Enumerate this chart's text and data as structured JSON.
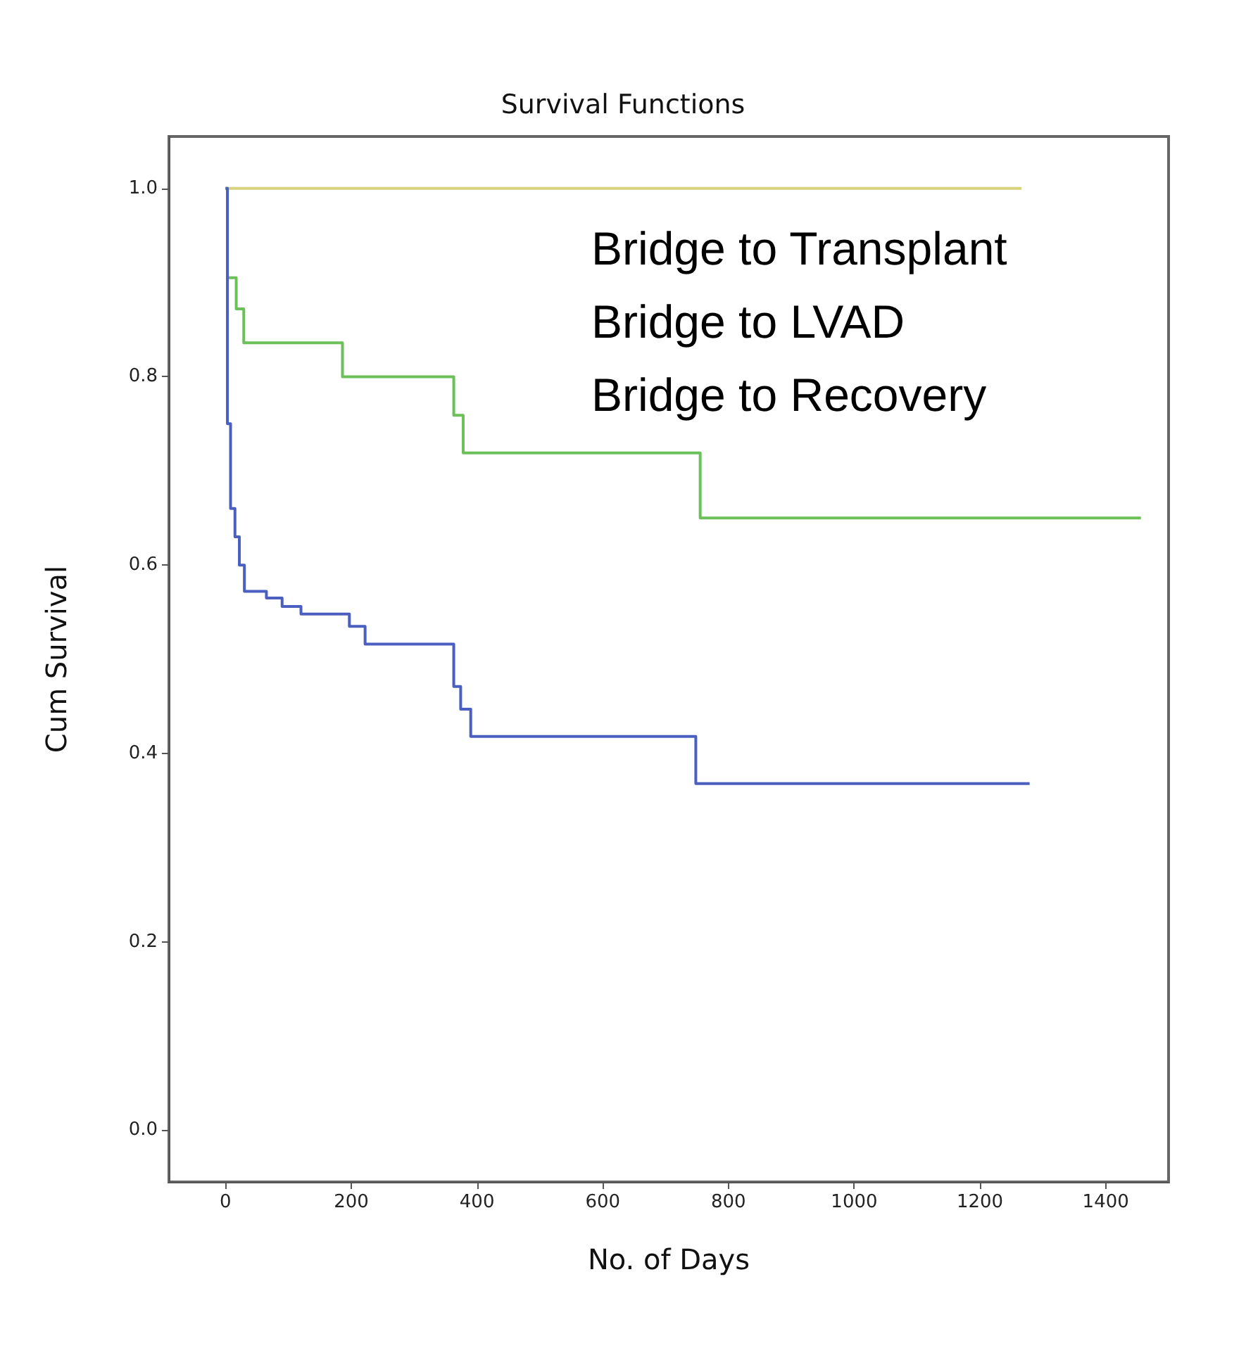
{
  "chart_data": {
    "type": "step",
    "title": "Survival Functions",
    "xlabel": "No. of Days",
    "ylabel": "Cum Survival",
    "annotations": [
      "Bridge to Transplant",
      "Bridge to LVAD",
      "Bridge to Recovery"
    ],
    "xlim": [
      -90,
      1500
    ],
    "xticks": [
      0,
      200,
      400,
      600,
      800,
      1000,
      1200,
      1400
    ],
    "ylim": [
      -0.055,
      1.055
    ],
    "yticks": [
      {
        "value": 0,
        "label": "0.0"
      },
      {
        "value": 0.2,
        "label": "0.2"
      },
      {
        "value": 0.4,
        "label": "0.4"
      },
      {
        "value": 0.6,
        "label": "0.6"
      },
      {
        "value": 0.8,
        "label": "0.8"
      },
      {
        "value": 1,
        "label": "1.0"
      }
    ],
    "marker": "none",
    "line_style": "solid",
    "series": [
      {
        "color": "#d8d27c",
        "x": [
          0,
          1266
        ],
        "values": [
          1.0,
          1.0
        ]
      },
      {
        "color": "#6cc05a",
        "x": [
          0,
          3,
          17,
          29,
          186,
          363,
          378,
          755,
          1456
        ],
        "values": [
          1.0,
          0.905,
          0.872,
          0.836,
          0.8,
          0.759,
          0.719,
          0.65,
          0.65
        ]
      },
      {
        "color": "#4a5fc0",
        "x": [
          0,
          3,
          8,
          15,
          22,
          30,
          65,
          90,
          120,
          197,
          222,
          363,
          374,
          390,
          748,
          1279
        ],
        "values": [
          1.0,
          0.75,
          0.66,
          0.63,
          0.6,
          0.572,
          0.565,
          0.556,
          0.548,
          0.535,
          0.516,
          0.471,
          0.447,
          0.418,
          0.368,
          0.368
        ]
      }
    ]
  }
}
